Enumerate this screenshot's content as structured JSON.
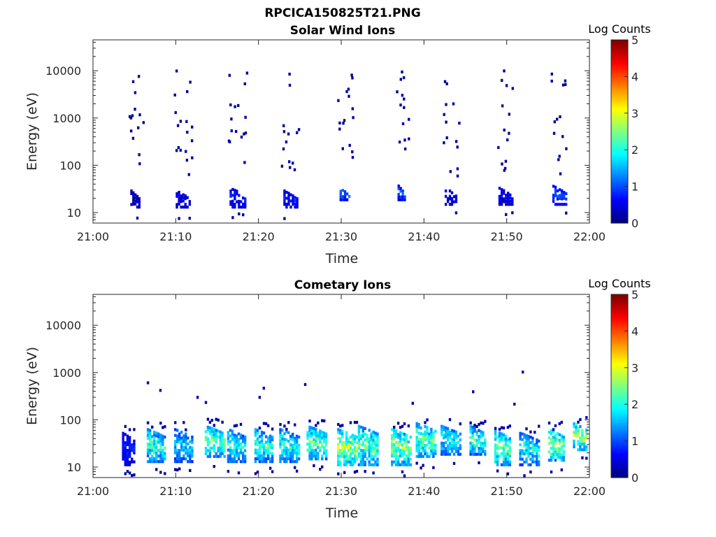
{
  "figure": {
    "title": "RPCICA150825T21.PNG"
  },
  "colorbar_colormap": "jet",
  "chart_data": [
    {
      "type": "heatmap",
      "title": "Solar Wind Ions",
      "xlabel": "Time",
      "ylabel": "Energy (eV)",
      "x_ticks": [
        "21:00",
        "21:10",
        "21:20",
        "21:30",
        "21:40",
        "21:50",
        "22:00"
      ],
      "y_ticks": [
        "10",
        "100",
        "1000",
        "10000"
      ],
      "x_range_minutes": [
        0,
        60
      ],
      "y_range_eV": [
        6,
        45000
      ],
      "y_scale": "log",
      "colorbar": {
        "label": "Log Counts",
        "range": [
          0,
          5
        ],
        "ticks": [
          "0",
          "1",
          "2",
          "3",
          "4",
          "5"
        ]
      },
      "bursts": [
        {
          "t_min": 4.5,
          "dur_min": 1.2,
          "e_peak_eV": 22,
          "e_low_eV": 14,
          "log_counts": 0.3,
          "n_scatter": 14
        },
        {
          "t_min": 10.0,
          "dur_min": 1.8,
          "e_peak_eV": 22,
          "e_low_eV": 14,
          "log_counts": 0.5,
          "n_scatter": 18
        },
        {
          "t_min": 16.5,
          "dur_min": 2.0,
          "e_peak_eV": 25,
          "e_low_eV": 14,
          "log_counts": 0.7,
          "n_scatter": 16
        },
        {
          "t_min": 23.0,
          "dur_min": 1.8,
          "e_peak_eV": 22,
          "e_low_eV": 14,
          "log_counts": 0.7,
          "n_scatter": 14
        },
        {
          "t_min": 29.8,
          "dur_min": 1.3,
          "e_peak_eV": 25,
          "e_low_eV": 20,
          "log_counts": 1.1,
          "n_scatter": 16
        },
        {
          "t_min": 36.8,
          "dur_min": 1.0,
          "e_peak_eV": 28,
          "e_low_eV": 20,
          "log_counts": 1.0,
          "n_scatter": 14
        },
        {
          "t_min": 42.5,
          "dur_min": 1.5,
          "e_peak_eV": 25,
          "e_low_eV": 16,
          "log_counts": 0.5,
          "n_scatter": 14
        },
        {
          "t_min": 49.0,
          "dur_min": 1.8,
          "e_peak_eV": 25,
          "e_low_eV": 16,
          "log_counts": 0.5,
          "n_scatter": 14
        },
        {
          "t_min": 55.5,
          "dur_min": 1.8,
          "e_peak_eV": 28,
          "e_low_eV": 16,
          "log_counts": 1.0,
          "n_scatter": 14
        }
      ]
    },
    {
      "type": "heatmap",
      "title": "Cometary Ions",
      "xlabel": "Time",
      "ylabel": "Energy (eV)",
      "x_ticks": [
        "21:00",
        "21:10",
        "21:20",
        "21:30",
        "21:40",
        "21:50",
        "22:00"
      ],
      "y_ticks": [
        "10",
        "100",
        "1000",
        "10000"
      ],
      "x_range_minutes": [
        0,
        60
      ],
      "y_range_eV": [
        6,
        45000
      ],
      "y_scale": "log",
      "colorbar": {
        "label": "Log Counts",
        "range": [
          0,
          5
        ],
        "ticks": [
          "0",
          "1",
          "2",
          "3",
          "4",
          "5"
        ]
      },
      "bursts": [
        {
          "t_min": 3.5,
          "dur_min": 1.6,
          "e_peak_eV": 25,
          "e_low_eV": 12,
          "log_counts": 0.7
        },
        {
          "t_min": 6.5,
          "dur_min": 2.3,
          "e_peak_eV": 30,
          "e_low_eV": 14,
          "log_counts": 2.0
        },
        {
          "t_min": 9.8,
          "dur_min": 2.3,
          "e_peak_eV": 30,
          "e_low_eV": 14,
          "log_counts": 1.6
        },
        {
          "t_min": 13.5,
          "dur_min": 2.5,
          "e_peak_eV": 35,
          "e_low_eV": 18,
          "log_counts": 2.2
        },
        {
          "t_min": 16.2,
          "dur_min": 2.3,
          "e_peak_eV": 30,
          "e_low_eV": 14,
          "log_counts": 1.8
        },
        {
          "t_min": 19.5,
          "dur_min": 2.3,
          "e_peak_eV": 30,
          "e_low_eV": 14,
          "log_counts": 2.0
        },
        {
          "t_min": 22.5,
          "dur_min": 2.5,
          "e_peak_eV": 30,
          "e_low_eV": 14,
          "log_counts": 1.9
        },
        {
          "t_min": 25.8,
          "dur_min": 2.5,
          "e_peak_eV": 35,
          "e_low_eV": 16,
          "log_counts": 2.2
        },
        {
          "t_min": 29.5,
          "dur_min": 2.5,
          "e_peak_eV": 30,
          "e_low_eV": 12,
          "log_counts": 2.6
        },
        {
          "t_min": 32.0,
          "dur_min": 2.5,
          "e_peak_eV": 35,
          "e_low_eV": 12,
          "log_counts": 2.2
        },
        {
          "t_min": 36.0,
          "dur_min": 2.5,
          "e_peak_eV": 30,
          "e_low_eV": 12,
          "log_counts": 2.4
        },
        {
          "t_min": 39.0,
          "dur_min": 2.5,
          "e_peak_eV": 40,
          "e_low_eV": 18,
          "log_counts": 2.2
        },
        {
          "t_min": 42.0,
          "dur_min": 2.5,
          "e_peak_eV": 35,
          "e_low_eV": 20,
          "log_counts": 1.8
        },
        {
          "t_min": 45.5,
          "dur_min": 2.0,
          "e_peak_eV": 35,
          "e_low_eV": 20,
          "log_counts": 2.0
        },
        {
          "t_min": 48.5,
          "dur_min": 2.0,
          "e_peak_eV": 28,
          "e_low_eV": 12,
          "log_counts": 2.3
        },
        {
          "t_min": 51.5,
          "dur_min": 2.5,
          "e_peak_eV": 25,
          "e_low_eV": 12,
          "log_counts": 1.8
        },
        {
          "t_min": 55.0,
          "dur_min": 2.0,
          "e_peak_eV": 30,
          "e_low_eV": 15,
          "log_counts": 2.4
        },
        {
          "t_min": 58.0,
          "dur_min": 2.0,
          "e_peak_eV": 40,
          "e_low_eV": 25,
          "log_counts": 2.5
        }
      ],
      "isolated_points": [
        {
          "t_min": 6.5,
          "e_eV": 650,
          "log_counts": 0.2
        },
        {
          "t_min": 8.0,
          "e_eV": 450,
          "log_counts": 0.2
        },
        {
          "t_min": 12.5,
          "e_eV": 320,
          "log_counts": 0.2
        },
        {
          "t_min": 13.5,
          "e_eV": 250,
          "log_counts": 0.2
        },
        {
          "t_min": 20.5,
          "e_eV": 500,
          "log_counts": 0.2
        },
        {
          "t_min": 20.0,
          "e_eV": 320,
          "log_counts": 0.2
        },
        {
          "t_min": 25.5,
          "e_eV": 600,
          "log_counts": 0.2
        },
        {
          "t_min": 38.5,
          "e_eV": 240,
          "log_counts": 0.2
        },
        {
          "t_min": 45.8,
          "e_eV": 420,
          "log_counts": 0.2
        },
        {
          "t_min": 51.8,
          "e_eV": 1100,
          "log_counts": 0.2
        },
        {
          "t_min": 50.8,
          "e_eV": 230,
          "log_counts": 0.2
        }
      ]
    }
  ]
}
